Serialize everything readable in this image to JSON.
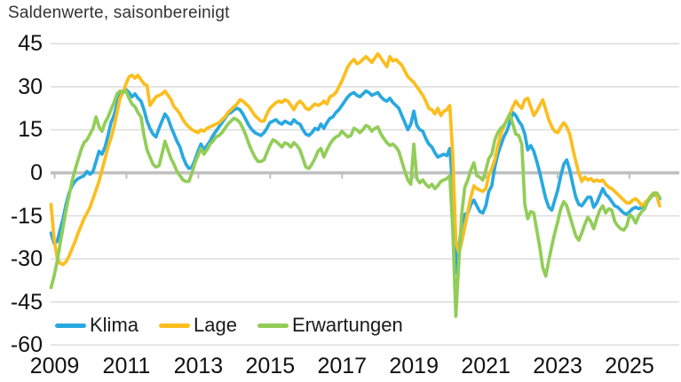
{
  "title": "Saldenwerte, saisonbereinigt",
  "colors": {
    "gridline": "#d9d9d9",
    "zero_line": "#bfbfbf",
    "tick": "#bfbfbf",
    "axis_text": "#111111",
    "title_text": "#333333"
  },
  "chart_data": {
    "type": "line",
    "title": "Saldenwerte, saisonbereinigt",
    "frequency": "monthly",
    "x_start_year": 2009,
    "x_end_year": 2025,
    "x_tick_labels": [
      "2009",
      "2011",
      "2013",
      "2015",
      "2017",
      "2019",
      "2021",
      "2023",
      "2025"
    ],
    "y_ticks": [
      45,
      30,
      15,
      0,
      -15,
      -30,
      -45,
      -60
    ],
    "ylim": [
      -60,
      45
    ],
    "grid": "horizontal",
    "legend_position": "bottom-left-inside",
    "series": [
      {
        "name": "Klima",
        "color": "#29a8e0",
        "values": [
          -21,
          -24.5,
          -24,
          -20,
          -16,
          -11,
          -7,
          -4.5,
          -3,
          -2,
          -1.5,
          -1,
          0.5,
          -0.5,
          0.5,
          4,
          7.5,
          6.5,
          9,
          13,
          17.5,
          20,
          24,
          27.5,
          28.5,
          29,
          28,
          26.5,
          27.5,
          26,
          25,
          22,
          18,
          15.5,
          13.5,
          12.5,
          15.5,
          18,
          20.5,
          19,
          16,
          13.5,
          11,
          9,
          5.5,
          3,
          1.5,
          2,
          4.5,
          7.5,
          10,
          8,
          9.5,
          11,
          13,
          14.5,
          16,
          17.5,
          19,
          20.5,
          21,
          22,
          22.5,
          22,
          20.5,
          18.5,
          16.5,
          15,
          14,
          13.5,
          13,
          14,
          15.5,
          17.5,
          18,
          18.5,
          17.5,
          17,
          18,
          17.5,
          17,
          18.5,
          17.5,
          17,
          15,
          13.5,
          13,
          14,
          15.5,
          15,
          17,
          15.5,
          17.5,
          19,
          19.5,
          21,
          22,
          23.5,
          25,
          26.5,
          27.5,
          28,
          27,
          26.5,
          27.5,
          28.5,
          28,
          27,
          27.5,
          28,
          26.5,
          25.5,
          25,
          26,
          24.5,
          23.5,
          22.5,
          20,
          17.5,
          15,
          17,
          21.5,
          16.5,
          15,
          14.5,
          12,
          10,
          9,
          7,
          5.5,
          6,
          6.5,
          6,
          8.5,
          -5,
          -35,
          -26,
          -18,
          -14.5,
          -14,
          -11,
          -9.5,
          -11.5,
          -13.5,
          -14,
          -11.5,
          -6.5,
          -4.5,
          2,
          6.5,
          9.5,
          12.5,
          14.5,
          17.5,
          21,
          20,
          18,
          16.5,
          13.5,
          8,
          9.5,
          7.5,
          4,
          0,
          -4.5,
          -9,
          -12,
          -13,
          -9.5,
          -6,
          -1,
          3,
          4.5,
          1,
          -4,
          -8.5,
          -11,
          -11.5,
          -10,
          -8.5,
          -8.5,
          -12,
          -10.5,
          -8,
          -5.5,
          -7.5,
          -8.5,
          -10,
          -11.5,
          -12,
          -13,
          -14,
          -14.5,
          -13.5,
          -12.5,
          -12,
          -12.5,
          -12,
          -11,
          -10,
          -8.5,
          -7.5,
          -8,
          -9
        ]
      },
      {
        "name": "Lage",
        "color": "#fcbe1e",
        "values": [
          -11,
          -23,
          -29.5,
          -31.5,
          -32,
          -31,
          -29,
          -26.5,
          -24,
          -21,
          -18.5,
          -16,
          -14,
          -12,
          -9,
          -6,
          -3,
          1,
          5,
          9,
          12,
          16,
          21,
          26,
          28,
          31,
          33.5,
          34,
          33,
          34,
          32.5,
          31,
          30.5,
          23.5,
          25,
          26.5,
          27,
          27.5,
          28.5,
          27,
          25.5,
          23,
          22,
          20.5,
          18.5,
          17,
          16,
          15,
          14.5,
          14,
          15,
          14.5,
          15.5,
          16,
          16.5,
          17,
          17.5,
          18.5,
          19.5,
          21,
          22,
          23,
          24,
          25.5,
          25,
          24,
          23,
          21.5,
          20,
          19,
          18,
          18,
          20.5,
          22.5,
          23.5,
          24.5,
          25,
          24.5,
          25.5,
          25,
          23.5,
          22,
          24,
          25,
          24,
          22.5,
          22,
          23,
          24,
          23.5,
          24,
          25,
          24,
          26.5,
          27,
          28,
          30,
          32,
          34.5,
          37,
          38.5,
          39.5,
          38,
          38.5,
          39.5,
          40.5,
          39.5,
          38.5,
          40,
          41.5,
          40,
          38.5,
          37,
          40.5,
          39,
          39.5,
          38.5,
          37.5,
          35.5,
          33.5,
          32.5,
          31.5,
          30,
          28.5,
          27,
          25,
          22.5,
          22,
          20.5,
          22.5,
          20,
          21.5,
          22,
          23.5,
          6,
          -24,
          -28,
          -24,
          -19,
          -13.5,
          -8.5,
          -4.5,
          -5.5,
          -6,
          -6.5,
          -5.5,
          -1,
          1.5,
          4.5,
          9.5,
          13.5,
          16,
          18.5,
          20.5,
          23,
          25,
          23.5,
          22.5,
          25.5,
          26,
          23,
          20,
          21.5,
          23.5,
          25.5,
          22,
          18.5,
          16,
          14.5,
          14,
          16,
          17.5,
          16,
          13.5,
          8.5,
          4,
          0,
          -3,
          -1.5,
          -2.5,
          -2,
          -3,
          -2.5,
          -3,
          -2.5,
          -4,
          -5,
          -5.5,
          -6.5,
          -7.5,
          -8.5,
          -9.5,
          -10.5,
          -10.5,
          -9.5,
          -9,
          -10,
          -11.5,
          -10.5,
          -9.5,
          -8,
          -7,
          -8,
          -11.5
        ]
      },
      {
        "name": "Erwartungen",
        "color": "#92cd58",
        "values": [
          -40,
          -36,
          -31,
          -25,
          -19,
          -13,
          -8,
          -3,
          1,
          4.5,
          8,
          10.5,
          11.5,
          13.5,
          15.5,
          19.5,
          16,
          14.5,
          17.5,
          19.5,
          22,
          24.5,
          27.5,
          28.5,
          28,
          28.5,
          26,
          24,
          23,
          21,
          19.5,
          13,
          8,
          5.5,
          3,
          2,
          2.5,
          6.5,
          11,
          8,
          5,
          3,
          0.5,
          -1,
          -2.5,
          -3,
          -3,
          0,
          3.5,
          6,
          8.5,
          6.5,
          8,
          10,
          11,
          12.5,
          13,
          14,
          15.5,
          17,
          18,
          19,
          18.5,
          17.5,
          15.5,
          13,
          10,
          7.5,
          5.5,
          4,
          4,
          4.5,
          7,
          9.5,
          11.5,
          11,
          10,
          9,
          10.5,
          10,
          9,
          10.5,
          9.5,
          8,
          5,
          2,
          1.5,
          3,
          5,
          7.5,
          8.5,
          5.5,
          8,
          10,
          11.5,
          12.5,
          13,
          14.5,
          13.5,
          12.5,
          13,
          15.5,
          15,
          14,
          15,
          16.5,
          16,
          14.5,
          15.5,
          16,
          13.5,
          12,
          10.5,
          9.5,
          10,
          9,
          7.5,
          4,
          0.5,
          -2.5,
          -4,
          10,
          -2,
          -3.5,
          -2.5,
          -4,
          -5,
          -4,
          -5.5,
          -4.5,
          -3,
          -2.5,
          -2,
          -1,
          -20,
          -50,
          -31,
          -14,
          -5,
          -2.5,
          1,
          3.5,
          -1,
          -1.5,
          -2.5,
          1,
          5,
          6.5,
          11.5,
          14,
          15.5,
          16.5,
          18,
          20.5,
          17,
          13.5,
          13,
          10,
          -11,
          -16,
          -13.5,
          -14,
          -20,
          -26,
          -33,
          -36,
          -30.5,
          -25.5,
          -21,
          -17,
          -12.5,
          -10,
          -11.5,
          -15,
          -18.5,
          -22,
          -23.5,
          -21,
          -18,
          -15.5,
          -17,
          -19.5,
          -16,
          -13,
          -11.5,
          -14,
          -12.5,
          -13,
          -17,
          -18.5,
          -19.5,
          -20,
          -18.5,
          -14.5,
          -15.5,
          -17.5,
          -15,
          -13.5,
          -12.5,
          -10,
          -8.5,
          -7,
          -7,
          -8.5
        ]
      }
    ]
  }
}
